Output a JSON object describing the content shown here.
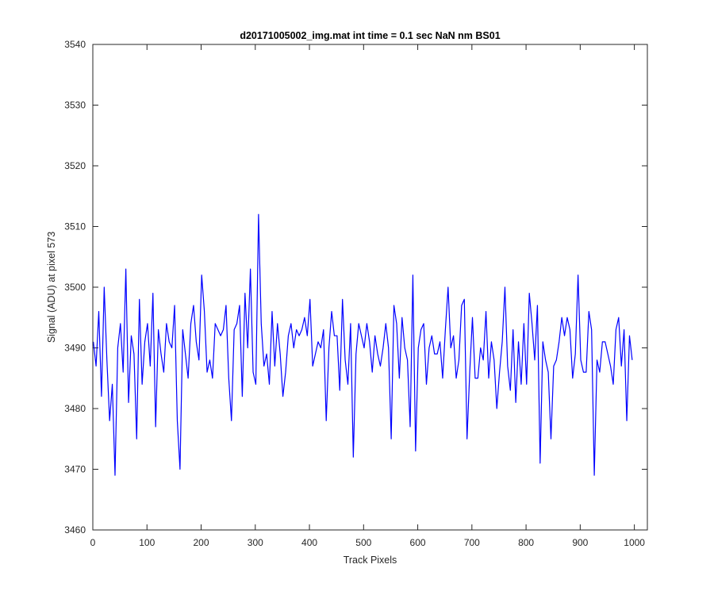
{
  "chart_data": {
    "type": "line",
    "title": "d20171005002_img.mat int time = 0.1 sec  NaN nm BS01",
    "xlabel": "Track Pixels",
    "ylabel": "Signal (ADU) at pixel 573",
    "xlim": [
      0,
      1024
    ],
    "ylim": [
      3460,
      3540
    ],
    "xticks": [
      0,
      100,
      200,
      300,
      400,
      500,
      600,
      700,
      800,
      900,
      1000
    ],
    "yticks": [
      3460,
      3470,
      3480,
      3490,
      3500,
      3510,
      3520,
      3530,
      3540
    ],
    "xtick_labels": [
      "0",
      "100",
      "200",
      "300",
      "400",
      "500",
      "600",
      "700",
      "800",
      "900",
      "1000"
    ],
    "ytick_labels": [
      "3460",
      "3470",
      "3480",
      "3490",
      "3500",
      "3510",
      "3520",
      "3530",
      "3540"
    ],
    "grid": false,
    "series": [
      {
        "color": "#0000ff",
        "x_start": 1,
        "x_step": 5,
        "y": [
          3491,
          3487,
          3496,
          3482,
          3500,
          3488,
          3478,
          3484,
          3469,
          3490,
          3494,
          3486,
          3503,
          3481,
          3492,
          3489,
          3475,
          3498,
          3484,
          3491,
          3494,
          3487,
          3499,
          3477,
          3493,
          3489,
          3486,
          3494,
          3491,
          3490,
          3497,
          3478,
          3470,
          3493,
          3489,
          3485,
          3494,
          3497,
          3491,
          3488,
          3502,
          3496,
          3486,
          3488,
          3485,
          3494,
          3493,
          3492,
          3493,
          3497,
          3485,
          3478,
          3493,
          3494,
          3497,
          3482,
          3499,
          3490,
          3503,
          3486,
          3484,
          3512,
          3494,
          3487,
          3489,
          3484,
          3496,
          3487,
          3494,
          3489,
          3482,
          3486,
          3492,
          3494,
          3490,
          3493,
          3492,
          3493,
          3495,
          3492,
          3498,
          3487,
          3489,
          3491,
          3490,
          3493,
          3478,
          3490,
          3496,
          3492,
          3492,
          3483,
          3498,
          3488,
          3484,
          3494,
          3472,
          3489,
          3494,
          3492,
          3490,
          3494,
          3491,
          3486,
          3492,
          3489,
          3487,
          3490,
          3494,
          3490,
          3475,
          3497,
          3494,
          3485,
          3495,
          3490,
          3488,
          3477,
          3502,
          3473,
          3490,
          3493,
          3494,
          3484,
          3490,
          3492,
          3489,
          3489,
          3491,
          3485,
          3493,
          3500,
          3490,
          3492,
          3485,
          3488,
          3497,
          3498,
          3475,
          3486,
          3495,
          3485,
          3485,
          3490,
          3488,
          3496,
          3485,
          3491,
          3488,
          3480,
          3486,
          3491,
          3500,
          3487,
          3483,
          3493,
          3481,
          3491,
          3484,
          3494,
          3484,
          3499,
          3494,
          3488,
          3497,
          3471,
          3491,
          3488,
          3486,
          3475,
          3487,
          3488,
          3491,
          3495,
          3492,
          3495,
          3493,
          3485,
          3489,
          3502,
          3488,
          3486,
          3486,
          3496,
          3493,
          3469,
          3488,
          3486,
          3491,
          3491,
          3489,
          3487,
          3484,
          3493,
          3495,
          3487,
          3493,
          3478,
          3492,
          3488
        ]
      }
    ]
  }
}
